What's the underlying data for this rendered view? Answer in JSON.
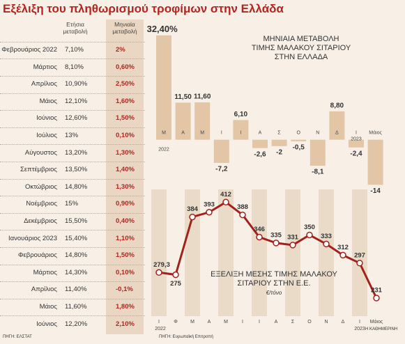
{
  "title": "Εξέλιξη του πληθωρισμού τροφίμων στην Ελλάδα",
  "table": {
    "headers": [
      "Ετήσια μεταβολή",
      "Μηνιαία μεταβολή"
    ],
    "rows": [
      [
        "Φεβρουάριος 2022",
        "7,10%",
        "2%"
      ],
      [
        "Μάρτιος",
        "8,10%",
        "0,60%"
      ],
      [
        "Απρίλιος",
        "10,90%",
        "2,50%"
      ],
      [
        "Μάιος",
        "12,10%",
        "1,60%"
      ],
      [
        "Ιούνιος",
        "12,60%",
        "1,50%"
      ],
      [
        "Ιούλιος",
        "13%",
        "0,10%"
      ],
      [
        "Αύγουστος",
        "13,20%",
        "1,30%"
      ],
      [
        "Σεπτέμβριος",
        "13,50%",
        "1,40%"
      ],
      [
        "Οκτώβριος",
        "14,80%",
        "1,30%"
      ],
      [
        "Νοέμβριος",
        "15%",
        "0,90%"
      ],
      [
        "Δεκέμβριος",
        "15,50%",
        "0,40%"
      ],
      [
        "Ιανουάριος 2023",
        "15,40%",
        "1,10%"
      ],
      [
        "Φεβρουάριος",
        "14,80%",
        "1,50%"
      ],
      [
        "Μάρτιος",
        "14,30%",
        "0,10%"
      ],
      [
        "Απρίλιος",
        "11,40%",
        "-0,1%"
      ],
      [
        "Μάιος",
        "11,60%",
        "1,80%"
      ],
      [
        "Ιούνιος",
        "12,20%",
        "2,10%"
      ]
    ]
  },
  "table_source": "ΠΗΓΗ: ΕΛΣΤΑΤ",
  "chart_source": "ΠΗΓΗ: Ευρωπαϊκή Επιτροπή",
  "credit": "Η ΚΑΘΗΜΕΡΙΝΗ",
  "chart_data": [
    {
      "type": "bar",
      "title": [
        "ΜΗΝΙΑΙΑ ΜΕΤΑΒΟΛΗ",
        "ΤΙΜΗΣ ΜΑΛΑΚΟΥ ΣΙΤΑΡΙΟΥ",
        "ΣΤΗΝ ΕΛΛΑΔΑ"
      ],
      "categories": [
        "Μ",
        "Α",
        "Μ",
        "Ι",
        "Ι",
        "Α",
        "Σ",
        "Ο",
        "Ν",
        "Δ",
        "Ι",
        "Μάιος"
      ],
      "years": [
        "2022",
        "2023"
      ],
      "values": [
        32.4,
        11.5,
        11.6,
        -7.2,
        6.1,
        -2.6,
        -2,
        -0.5,
        -8.1,
        8.8,
        -2.4,
        -14
      ],
      "value_labels": [
        "32,40%",
        "11,50",
        "11,60",
        "-7,2",
        "6,10",
        "-2,6",
        "-2",
        "-0,5",
        "-8,1",
        "8,80",
        "-2,4",
        "-14"
      ],
      "color": "#e2c6a6",
      "ylim": [
        -15,
        33
      ]
    },
    {
      "type": "line",
      "title": [
        "ΕΞΕΛΙΞΗ ΜΕΣΗΣ ΤΙΜΗΣ ΜΑΛΑΚΟΥ",
        "ΣΙΤΑΡΙΟΥ ΣΤΗΝ Ε.Ε."
      ],
      "unit": "€/τόνο",
      "categories": [
        "Ι",
        "Φ",
        "Μ",
        "Α",
        "Μ",
        "Ι",
        "Ι",
        "Α",
        "Σ",
        "Ο",
        "Ν",
        "Δ",
        "Ι",
        "Μάιος"
      ],
      "years": [
        "2022",
        "2023"
      ],
      "values": [
        279.3,
        275,
        384,
        393,
        412,
        388,
        346,
        335,
        331,
        350,
        333,
        312,
        297,
        231
      ],
      "value_labels": [
        "279,3",
        "275",
        "384",
        "393",
        "412",
        "388",
        "346",
        "335",
        "331",
        "350",
        "333",
        "312",
        "297",
        "231"
      ],
      "color": "#a3211c",
      "ylim": [
        210,
        440
      ]
    }
  ]
}
